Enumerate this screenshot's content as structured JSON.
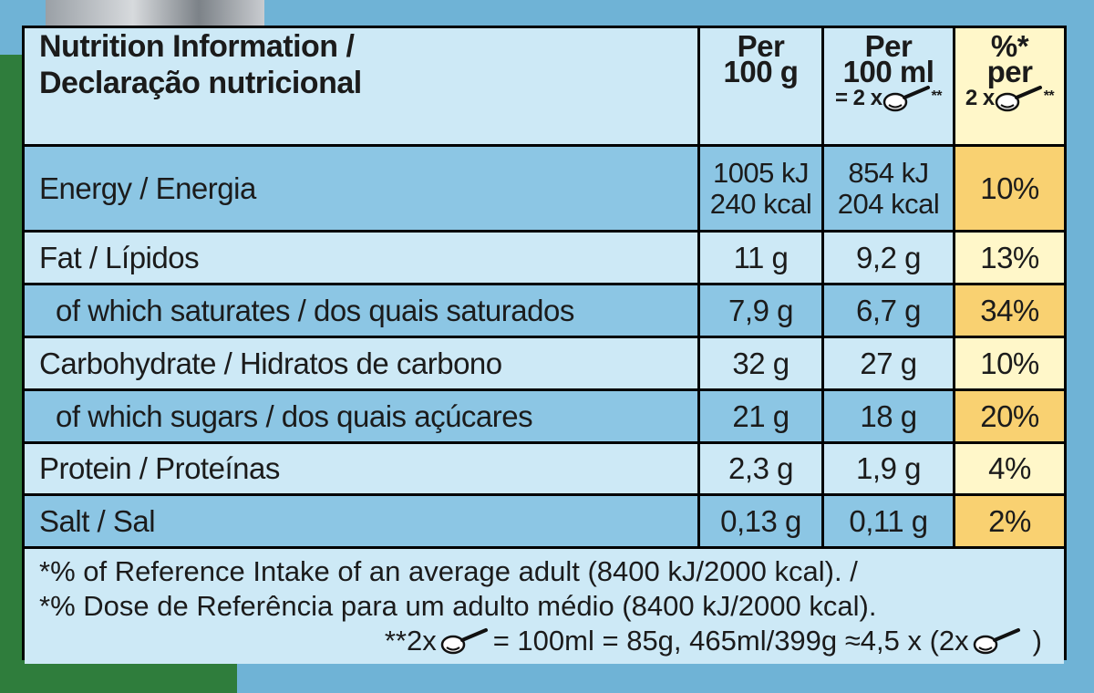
{
  "header": {
    "title_line1": "Nutrition Information /",
    "title_line2": "Declaração nutricional",
    "col1_line1": "Per",
    "col1_line2": "100 g",
    "col2_line1": "Per",
    "col2_line2": "100 ml",
    "col2_line3": "= 2 x",
    "col2_suffix": "**",
    "col3_line1": "%*",
    "col3_line2": "per",
    "col3_line3": "2 x",
    "col3_suffix": "**"
  },
  "rows": [
    {
      "label": "Energy / Energia",
      "per100g_line1": "1005 kJ",
      "per100g_line2": "240 kcal",
      "per100ml_line1": "854 kJ",
      "per100ml_line2": "204 kcal",
      "pct": "10%"
    },
    {
      "label": "Fat / Lípidos",
      "per100g": "11 g",
      "per100ml": "9,2 g",
      "pct": "13%"
    },
    {
      "label": "of which saturates / dos quais saturados",
      "per100g": "7,9 g",
      "per100ml": "6,7 g",
      "pct": "34%"
    },
    {
      "label": "Carbohydrate / Hidratos de carbono",
      "per100g": "32 g",
      "per100ml": "27 g",
      "pct": "10%"
    },
    {
      "label": "of which sugars / dos quais açúcares",
      "per100g": "21 g",
      "per100ml": "18 g",
      "pct": "20%"
    },
    {
      "label": "Protein / Proteínas",
      "per100g": "2,3 g",
      "per100ml": "1,9 g",
      "pct": "4%"
    },
    {
      "label": "Salt / Sal",
      "per100g": "0,13 g",
      "per100ml": "0,11 g",
      "pct": "2%"
    }
  ],
  "footnote": {
    "line1": "*% of Reference Intake of an average adult (8400 kJ/2000 kcal). /",
    "line2": "*% Dose de Referência para um adulto médio (8400 kJ/2000 kcal).",
    "line3_prefix": "**2x",
    "line3_middle": "= 100ml = 85g, 465ml/399g ≈4,5 x (2x",
    "line3_suffix": ")"
  },
  "colors": {
    "light_blue": "#cde9f6",
    "mid_blue": "#8cc6e4",
    "cream": "#fff7c9",
    "amber": "#f9d171",
    "bg_blue": "#6fb3d6",
    "bg_green": "#2f7d3c"
  },
  "icons": [
    "ladle-scoop-icon"
  ]
}
